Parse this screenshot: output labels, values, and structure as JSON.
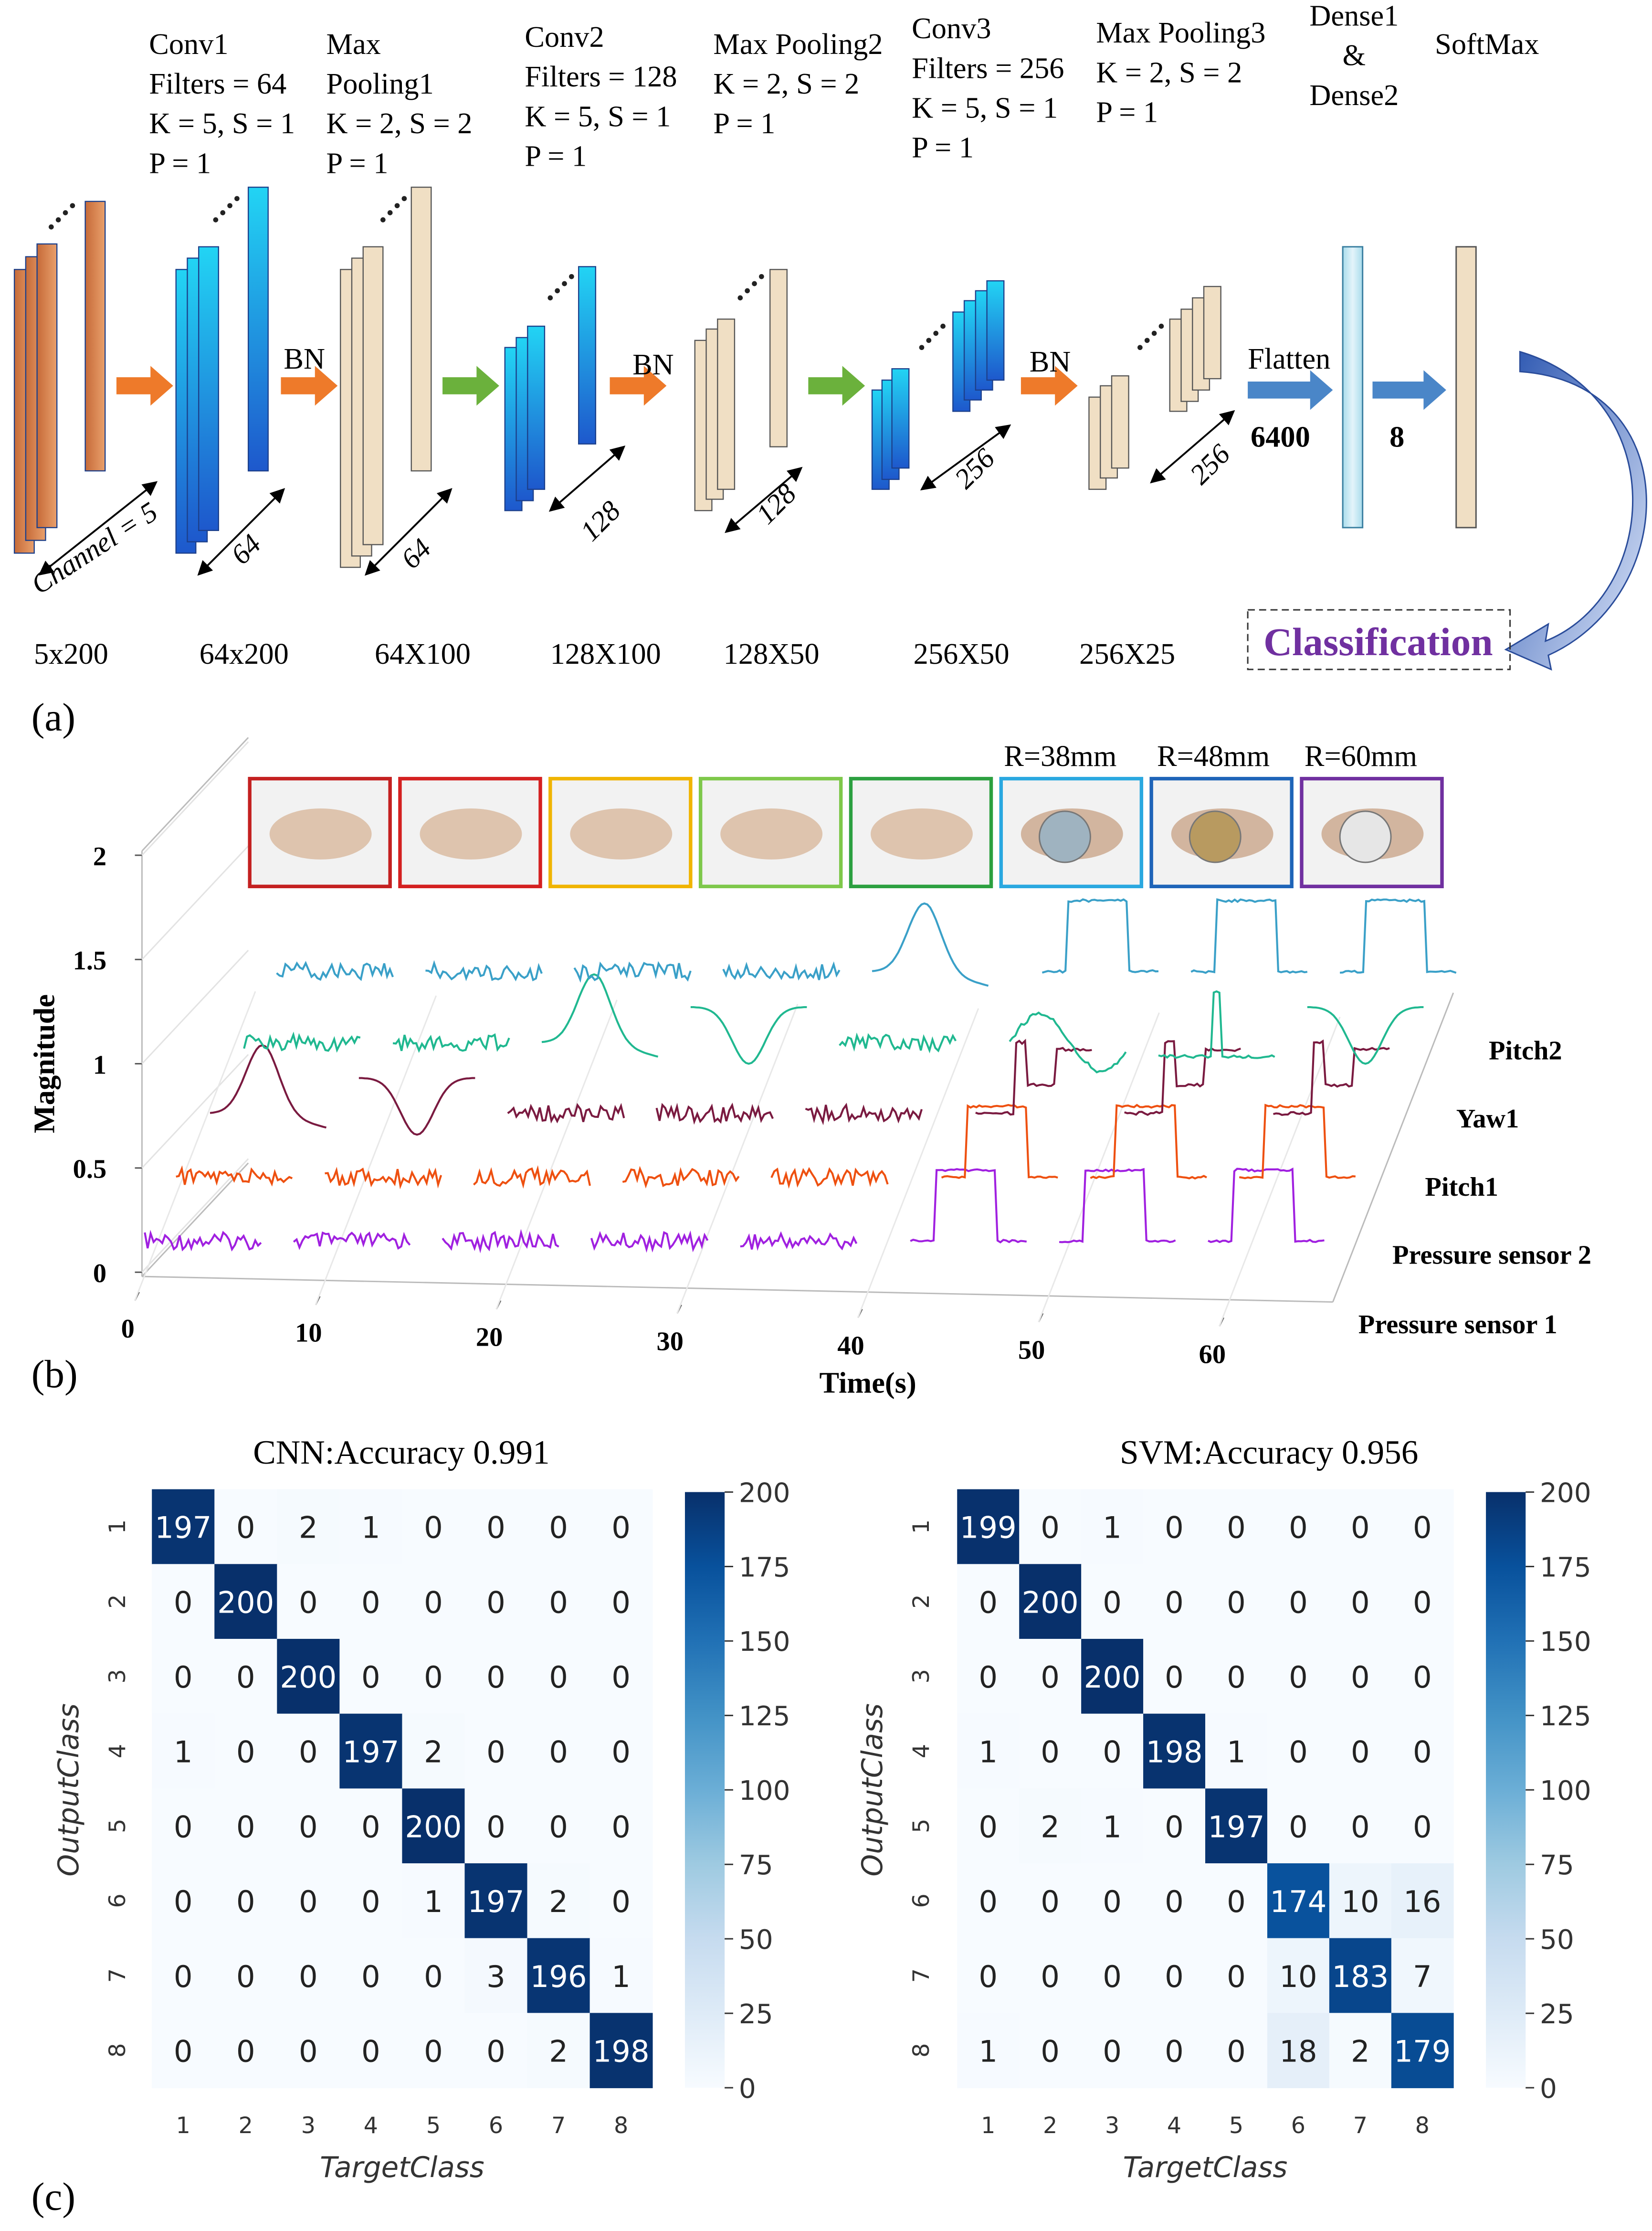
{
  "diagram": {
    "panel": "(a)",
    "layers": [
      {
        "lines": [
          "Conv1",
          "Filters = 64",
          "K = 5, S = 1",
          "P = 1"
        ]
      },
      {
        "lines": [
          "Max",
          "Pooling1",
          "K = 2, S = 2",
          "P = 1"
        ]
      },
      {
        "lines": [
          "Conv2",
          "Filters = 128",
          "K = 5, S = 1",
          "P = 1"
        ]
      },
      {
        "lines": [
          "Max Pooling2",
          "K = 2, S = 2",
          "P = 1"
        ]
      },
      {
        "lines": [
          "Conv3",
          "Filters = 256",
          "K = 5, S = 1",
          "P = 1"
        ]
      },
      {
        "lines": [
          "Max Pooling3",
          "K = 2, S = 2",
          "P = 1"
        ]
      },
      {
        "lines": [
          "Dense1",
          "&",
          "Dense2"
        ]
      },
      {
        "lines": [
          "SoftMax"
        ]
      }
    ],
    "sizes": [
      "5x200",
      "64x200",
      "64X100",
      "128X100",
      "128X50",
      "256X50",
      "256X25"
    ],
    "depths": [
      "Channel = 5",
      "64",
      "64",
      "128",
      "128",
      "256",
      "256"
    ],
    "bn": [
      "BN",
      "BN",
      "BN"
    ],
    "flatten": "Flatten",
    "flatten_size": "6400",
    "dense_size": "8",
    "output": "Classification"
  },
  "waveform_plot": {
    "panel": "(b)",
    "ylabel": "Magnitude",
    "xlabel": "Time(s)",
    "yticks": [
      0,
      0.5,
      1,
      1.5,
      2
    ],
    "xticks": [
      0,
      10,
      20,
      30,
      40,
      50,
      60
    ],
    "series_labels": [
      "Pressure sensor 1",
      "Pressure sensor 2",
      "Pitch1",
      "Yaw1",
      "Pitch2"
    ],
    "photo_labels": [
      "R=38mm",
      "R=48mm",
      "R=60mm"
    ]
  },
  "panel_c": "(c)",
  "chart_data": [
    {
      "type": "heatmap",
      "title": "CNN:Accuracy 0.991",
      "xlabel": "TargetClass",
      "ylabel": "OutputClass",
      "x": [
        "1",
        "2",
        "3",
        "4",
        "5",
        "6",
        "7",
        "8"
      ],
      "y": [
        "1",
        "2",
        "3",
        "4",
        "5",
        "6",
        "7",
        "8"
      ],
      "values": [
        [
          197,
          0,
          2,
          1,
          0,
          0,
          0,
          0
        ],
        [
          0,
          200,
          0,
          0,
          0,
          0,
          0,
          0
        ],
        [
          0,
          0,
          200,
          0,
          0,
          0,
          0,
          0
        ],
        [
          1,
          0,
          0,
          197,
          2,
          0,
          0,
          0
        ],
        [
          0,
          0,
          0,
          0,
          200,
          0,
          0,
          0
        ],
        [
          0,
          0,
          0,
          0,
          1,
          197,
          2,
          0
        ],
        [
          0,
          0,
          0,
          0,
          0,
          3,
          196,
          1
        ],
        [
          0,
          0,
          0,
          0,
          0,
          0,
          2,
          198
        ]
      ],
      "zlim": [
        0,
        200
      ],
      "zticks": [
        0,
        25,
        50,
        75,
        100,
        125,
        150,
        175,
        200
      ],
      "colormap": "Blues"
    },
    {
      "type": "heatmap",
      "title": "SVM:Accuracy 0.956",
      "xlabel": "TargetClass",
      "ylabel": "OutputClass",
      "x": [
        "1",
        "2",
        "3",
        "4",
        "5",
        "6",
        "7",
        "8"
      ],
      "y": [
        "1",
        "2",
        "3",
        "4",
        "5",
        "6",
        "7",
        "8"
      ],
      "values": [
        [
          199,
          0,
          1,
          0,
          0,
          0,
          0,
          0
        ],
        [
          0,
          200,
          0,
          0,
          0,
          0,
          0,
          0
        ],
        [
          0,
          0,
          200,
          0,
          0,
          0,
          0,
          0
        ],
        [
          1,
          0,
          0,
          198,
          1,
          0,
          0,
          0
        ],
        [
          0,
          2,
          1,
          0,
          197,
          0,
          0,
          0
        ],
        [
          0,
          0,
          0,
          0,
          0,
          174,
          10,
          16
        ],
        [
          0,
          0,
          0,
          0,
          0,
          10,
          183,
          7
        ],
        [
          1,
          0,
          0,
          0,
          0,
          18,
          2,
          179
        ]
      ],
      "zlim": [
        0,
        200
      ],
      "zticks": [
        0,
        25,
        50,
        75,
        100,
        125,
        150,
        175,
        200
      ],
      "colormap": "Blues"
    }
  ]
}
